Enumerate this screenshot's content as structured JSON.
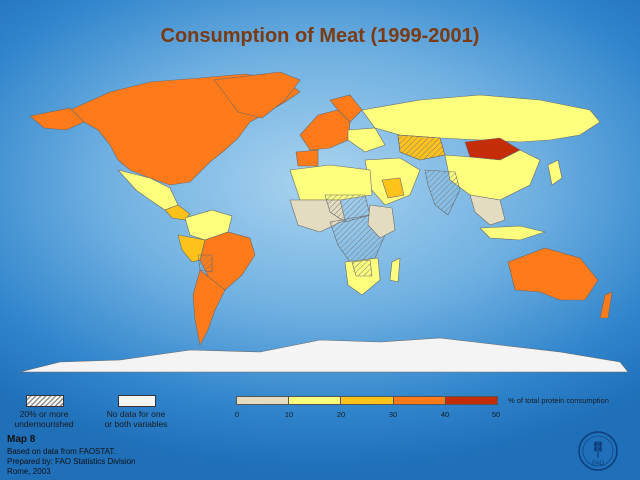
{
  "title": "Consumption of Meat  (1999-2001)",
  "legend": {
    "undernourished_line1": "20% or more",
    "undernourished_line2": "undernourished",
    "nodata_line1": "No data for one",
    "nodata_line2": "or both variables",
    "scale_title": "% of total protein consumption",
    "scale_colors": [
      "#e3dcc0",
      "#ffff7e",
      "#ffc21a",
      "#ff7a1a",
      "#c42d08"
    ],
    "scale_ticks": [
      "0",
      "10",
      "20",
      "30",
      "40",
      "50"
    ]
  },
  "colors": {
    "ocean": "#4f9bd8",
    "nodata": "#f4f4f4",
    "c0_10": "#e3dcc0",
    "c10_20": "#ffff7e",
    "c20_30": "#ffc21a",
    "c30_40": "#ff7a1a",
    "c40_50": "#c42d08"
  },
  "footer": {
    "map_number": "Map 8",
    "line1": "Based on data from FAOSTAT.",
    "line2": "Prepared by: FAO Statistics Division",
    "line3": "Rome, 2003"
  },
  "logo": {
    "text": "FAO",
    "icon": "fao-logo-icon"
  }
}
